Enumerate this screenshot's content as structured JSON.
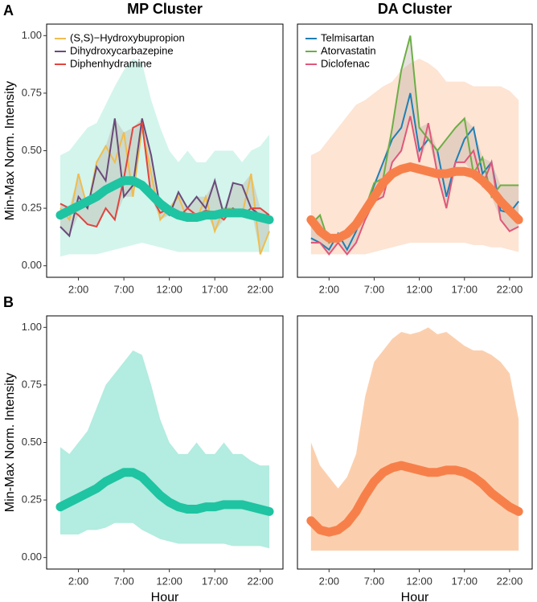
{
  "chart_data": [
    {
      "type": "line",
      "panel_label": "A",
      "title": "MP Cluster",
      "ylabel": "Min-Max Norm. Intensity",
      "x": [
        0,
        1,
        2,
        3,
        4,
        5,
        6,
        7,
        8,
        9,
        10,
        11,
        12,
        13,
        14,
        15,
        16,
        17,
        18,
        19,
        20,
        21,
        22,
        23
      ],
      "xlim": [
        -1.5,
        24.5
      ],
      "xticks": [
        {
          "value": 2,
          "label": "2:00"
        },
        {
          "value": 7,
          "label": "7:00"
        },
        {
          "value": 12,
          "label": "12:00"
        },
        {
          "value": 17,
          "label": "17:00"
        },
        {
          "value": 22,
          "label": "22:00"
        }
      ],
      "ylim": [
        -0.05,
        1.05
      ],
      "yticks": [
        {
          "value": 0,
          "label": "0.00"
        },
        {
          "value": 0.25,
          "label": "0.25"
        },
        {
          "value": 0.5,
          "label": "0.50"
        },
        {
          "value": 0.75,
          "label": "0.75"
        },
        {
          "value": 1,
          "label": "1.00"
        }
      ],
      "band": {
        "color": "#d3f5ec",
        "lower": [
          0.04,
          0.05,
          0.05,
          0.05,
          0.05,
          0.06,
          0.07,
          0.08,
          0.09,
          0.1,
          0.09,
          0.08,
          0.07,
          0.06,
          0.06,
          0.06,
          0.06,
          0.06,
          0.06,
          0.06,
          0.06,
          0.06,
          0.06,
          0.06
        ],
        "upper": [
          0.48,
          0.5,
          0.55,
          0.6,
          0.62,
          0.7,
          0.78,
          0.85,
          0.9,
          0.88,
          0.72,
          0.6,
          0.5,
          0.45,
          0.5,
          0.45,
          0.45,
          0.5,
          0.5,
          0.5,
          0.45,
          0.5,
          0.52,
          0.57
        ]
      },
      "series": [
        {
          "name": "(S,S)−Hydroxybupropion",
          "color": "#f0bd4e",
          "values": [
            0.25,
            0.2,
            0.4,
            0.25,
            0.45,
            0.52,
            0.45,
            0.58,
            0.3,
            0.6,
            0.4,
            0.2,
            0.25,
            0.3,
            0.2,
            0.2,
            0.3,
            0.15,
            0.25,
            0.25,
            0.22,
            0.4,
            0.05,
            0.15
          ]
        },
        {
          "name": "Dihydroxycarbazepine",
          "color": "#6a4a7a",
          "values": [
            0.17,
            0.13,
            0.3,
            0.25,
            0.43,
            0.37,
            0.64,
            0.3,
            0.35,
            0.64,
            0.48,
            0.25,
            0.22,
            0.32,
            0.25,
            0.3,
            0.25,
            0.37,
            0.22,
            0.36,
            0.35,
            0.25,
            0.22,
            0.22
          ]
        },
        {
          "name": "Diphenhydramine",
          "color": "#e2443f",
          "values": [
            0.27,
            0.25,
            0.22,
            0.18,
            0.17,
            0.25,
            0.2,
            0.38,
            0.6,
            0.62,
            0.3,
            0.23,
            0.25,
            0.21,
            0.25,
            0.22,
            0.24,
            0.23,
            0.2,
            0.25,
            0.22,
            0.25,
            0.25,
            0.22
          ]
        }
      ],
      "trend": {
        "color": "#1fc4a2",
        "values": [
          0.22,
          0.24,
          0.26,
          0.28,
          0.3,
          0.33,
          0.35,
          0.37,
          0.37,
          0.35,
          0.31,
          0.27,
          0.24,
          0.22,
          0.21,
          0.21,
          0.22,
          0.22,
          0.23,
          0.23,
          0.23,
          0.22,
          0.21,
          0.2
        ]
      }
    },
    {
      "type": "line",
      "title": "DA Cluster",
      "x": [
        0,
        1,
        2,
        3,
        4,
        5,
        6,
        7,
        8,
        9,
        10,
        11,
        12,
        13,
        14,
        15,
        16,
        17,
        18,
        19,
        20,
        21,
        22,
        23
      ],
      "xlim": [
        -1.5,
        24.5
      ],
      "xticks": [
        {
          "value": 2,
          "label": "2:00"
        },
        {
          "value": 7,
          "label": "7:00"
        },
        {
          "value": 12,
          "label": "12:00"
        },
        {
          "value": 17,
          "label": "17:00"
        },
        {
          "value": 22,
          "label": "22:00"
        }
      ],
      "ylim": [
        -0.05,
        1.05
      ],
      "band": {
        "color": "#fde4d3",
        "lower": [
          0.05,
          0.05,
          0.05,
          0.05,
          0.05,
          0.05,
          0.05,
          0.06,
          0.07,
          0.08,
          0.09,
          0.1,
          0.1,
          0.1,
          0.1,
          0.1,
          0.1,
          0.1,
          0.09,
          0.09,
          0.08,
          0.08,
          0.07,
          0.06
        ],
        "upper": [
          0.48,
          0.5,
          0.55,
          0.6,
          0.65,
          0.7,
          0.72,
          0.75,
          0.78,
          0.8,
          0.85,
          0.88,
          0.9,
          0.88,
          0.85,
          0.8,
          0.8,
          0.8,
          0.78,
          0.78,
          0.78,
          0.78,
          0.76,
          0.72
        ]
      },
      "series": [
        {
          "name": "Telmisartan",
          "color": "#1f7fb4",
          "values": [
            0.12,
            0.1,
            0.07,
            0.14,
            0.07,
            0.15,
            0.25,
            0.35,
            0.45,
            0.55,
            0.6,
            0.75,
            0.5,
            0.55,
            0.5,
            0.3,
            0.45,
            0.55,
            0.6,
            0.4,
            0.45,
            0.24,
            0.23,
            0.28
          ]
        },
        {
          "name": "Atorvastatin",
          "color": "#6cae45",
          "values": [
            0.18,
            0.22,
            0.1,
            0.12,
            0.15,
            0.16,
            0.25,
            0.36,
            0.38,
            0.6,
            0.85,
            1.0,
            0.6,
            0.55,
            0.5,
            0.55,
            0.6,
            0.64,
            0.4,
            0.47,
            0.3,
            0.35,
            0.35,
            0.35
          ]
        },
        {
          "name": "Diclofenac",
          "color": "#e0577a",
          "values": [
            0.1,
            0.1,
            0.05,
            0.1,
            0.05,
            0.1,
            0.2,
            0.28,
            0.3,
            0.45,
            0.5,
            0.65,
            0.45,
            0.62,
            0.4,
            0.25,
            0.45,
            0.45,
            0.5,
            0.35,
            0.45,
            0.2,
            0.15,
            0.17
          ]
        }
      ],
      "trend": {
        "color": "#f7804a",
        "values": [
          0.2,
          0.15,
          0.12,
          0.12,
          0.14,
          0.18,
          0.24,
          0.3,
          0.36,
          0.4,
          0.42,
          0.43,
          0.42,
          0.41,
          0.4,
          0.4,
          0.41,
          0.41,
          0.4,
          0.37,
          0.33,
          0.28,
          0.24,
          0.2
        ]
      }
    },
    {
      "type": "line",
      "panel_label": "B",
      "ylabel": "Min-Max Norm. Intensity",
      "xlabel": "Hour",
      "x": [
        0,
        1,
        2,
        3,
        4,
        5,
        6,
        7,
        8,
        9,
        10,
        11,
        12,
        13,
        14,
        15,
        16,
        17,
        18,
        19,
        20,
        21,
        22,
        23
      ],
      "xlim": [
        -1.5,
        24.5
      ],
      "xticks": [
        {
          "value": 2,
          "label": "2:00"
        },
        {
          "value": 7,
          "label": "7:00"
        },
        {
          "value": 12,
          "label": "12:00"
        },
        {
          "value": 17,
          "label": "17:00"
        },
        {
          "value": 22,
          "label": "22:00"
        }
      ],
      "ylim": [
        -0.05,
        1.05
      ],
      "yticks": [
        {
          "value": 0,
          "label": "0.00"
        },
        {
          "value": 0.25,
          "label": "0.25"
        },
        {
          "value": 0.5,
          "label": "0.50"
        },
        {
          "value": 0.75,
          "label": "0.75"
        },
        {
          "value": 1,
          "label": "1.00"
        }
      ],
      "band": {
        "color": "#b3ece0",
        "lower": [
          0.1,
          0.1,
          0.1,
          0.12,
          0.12,
          0.13,
          0.15,
          0.15,
          0.15,
          0.12,
          0.1,
          0.08,
          0.07,
          0.06,
          0.06,
          0.06,
          0.06,
          0.06,
          0.06,
          0.05,
          0.05,
          0.05,
          0.05,
          0.04
        ],
        "upper": [
          0.48,
          0.45,
          0.5,
          0.55,
          0.65,
          0.75,
          0.8,
          0.85,
          0.9,
          0.88,
          0.75,
          0.6,
          0.5,
          0.45,
          0.45,
          0.5,
          0.45,
          0.45,
          0.5,
          0.45,
          0.45,
          0.42,
          0.4,
          0.4
        ]
      },
      "trend": {
        "color": "#1fc4a2",
        "values": [
          0.22,
          0.24,
          0.26,
          0.28,
          0.3,
          0.33,
          0.35,
          0.37,
          0.37,
          0.35,
          0.31,
          0.27,
          0.24,
          0.22,
          0.21,
          0.21,
          0.22,
          0.22,
          0.23,
          0.23,
          0.23,
          0.22,
          0.21,
          0.2
        ]
      }
    },
    {
      "type": "line",
      "xlabel": "Hour",
      "x": [
        0,
        1,
        2,
        3,
        4,
        5,
        6,
        7,
        8,
        9,
        10,
        11,
        12,
        13,
        14,
        15,
        16,
        17,
        18,
        19,
        20,
        21,
        22,
        23
      ],
      "xlim": [
        -1.5,
        24.5
      ],
      "xticks": [
        {
          "value": 2,
          "label": "2:00"
        },
        {
          "value": 7,
          "label": "7:00"
        },
        {
          "value": 12,
          "label": "12:00"
        },
        {
          "value": 17,
          "label": "17:00"
        },
        {
          "value": 22,
          "label": "22:00"
        }
      ],
      "ylim": [
        -0.05,
        1.05
      ],
      "band": {
        "color": "#fbcfae",
        "lower": [
          0.03,
          0.03,
          0.03,
          0.03,
          0.03,
          0.03,
          0.03,
          0.03,
          0.03,
          0.03,
          0.03,
          0.03,
          0.03,
          0.03,
          0.03,
          0.03,
          0.03,
          0.03,
          0.03,
          0.03,
          0.03,
          0.03,
          0.03,
          0.03
        ],
        "upper": [
          0.5,
          0.4,
          0.35,
          0.3,
          0.35,
          0.45,
          0.7,
          0.85,
          0.9,
          0.95,
          0.98,
          0.97,
          0.98,
          1.0,
          0.97,
          0.98,
          0.95,
          0.92,
          0.9,
          0.9,
          0.88,
          0.85,
          0.8,
          0.6
        ]
      },
      "trend": {
        "color": "#f7804a",
        "values": [
          0.16,
          0.12,
          0.11,
          0.12,
          0.15,
          0.2,
          0.27,
          0.33,
          0.37,
          0.39,
          0.4,
          0.39,
          0.38,
          0.37,
          0.37,
          0.38,
          0.38,
          0.37,
          0.35,
          0.32,
          0.28,
          0.25,
          0.22,
          0.2
        ]
      }
    }
  ]
}
